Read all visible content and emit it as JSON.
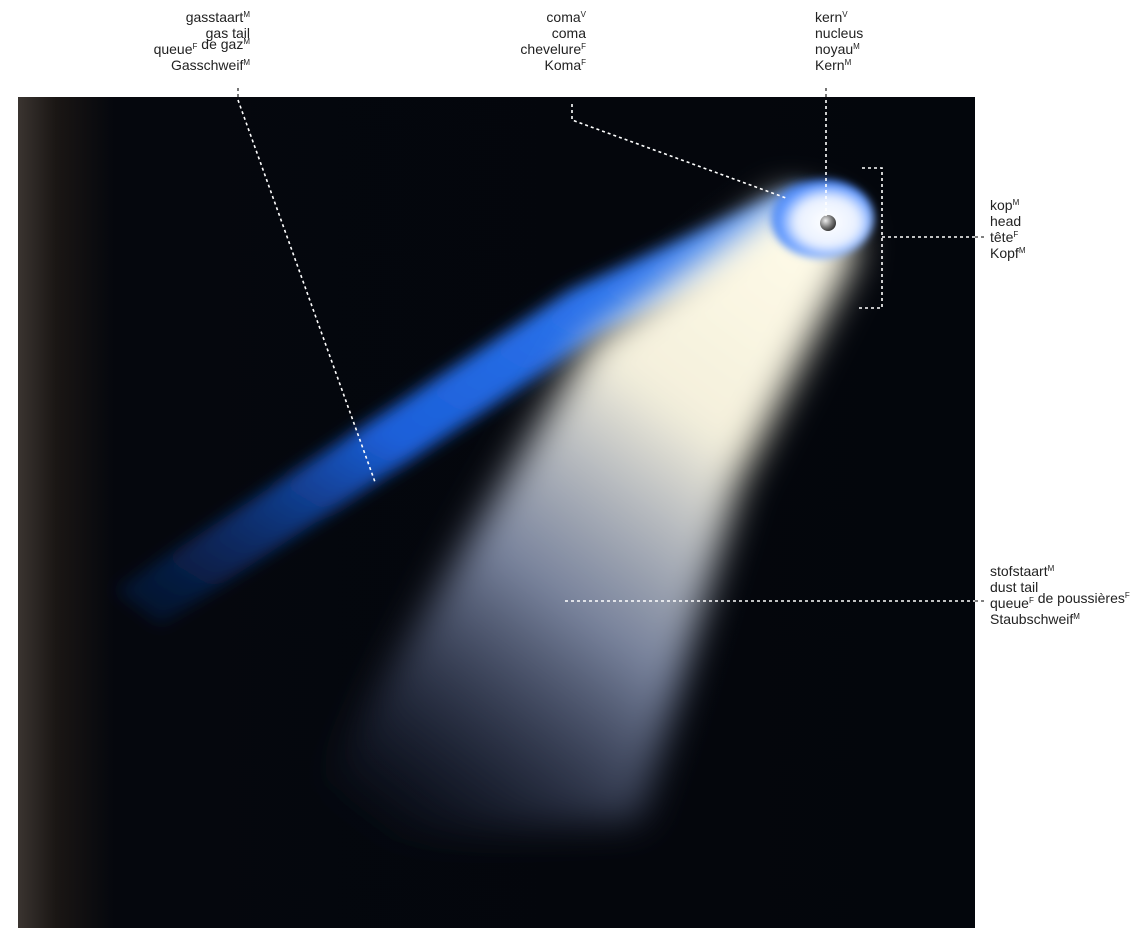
{
  "labels": [
    {
      "lines": [
        [
          {
            "text": "gasstaart"
          },
          {
            "sup": "M"
          }
        ],
        [
          {
            "text": "gas tail"
          }
        ],
        [
          {
            "text": "queue"
          },
          {
            "sup": "F"
          },
          {
            "text": " de gaz"
          },
          {
            "sup": "M"
          }
        ],
        [
          {
            "text": "Gasschweif"
          },
          {
            "sup": "M"
          }
        ]
      ]
    },
    {
      "lines": [
        [
          {
            "text": "coma"
          },
          {
            "sup": "V"
          }
        ],
        [
          {
            "text": "coma"
          }
        ],
        [
          {
            "text": "chevelure"
          },
          {
            "sup": "F"
          }
        ],
        [
          {
            "text": "Koma"
          },
          {
            "sup": "F"
          }
        ]
      ]
    },
    {
      "lines": [
        [
          {
            "text": "kern"
          },
          {
            "sup": "V"
          }
        ],
        [
          {
            "text": "nucleus"
          }
        ],
        [
          {
            "text": "noyau"
          },
          {
            "sup": "M"
          }
        ],
        [
          {
            "text": "Kern"
          },
          {
            "sup": "M"
          }
        ]
      ]
    },
    {
      "lines": [
        [
          {
            "text": "kop"
          },
          {
            "sup": "M"
          }
        ],
        [
          {
            "text": "head"
          }
        ],
        [
          {
            "text": "tête"
          },
          {
            "sup": "F"
          }
        ],
        [
          {
            "text": "Kopf"
          },
          {
            "sup": "M"
          }
        ]
      ]
    },
    {
      "lines": [
        [
          {
            "text": "stofstaart"
          },
          {
            "sup": "M"
          }
        ],
        [
          {
            "text": "dust tail"
          }
        ],
        [
          {
            "text": "queue"
          },
          {
            "sup": "F"
          },
          {
            "text": " de poussières"
          },
          {
            "sup": "F"
          }
        ],
        [
          {
            "text": "Staubschweif"
          },
          {
            "sup": "M"
          }
        ]
      ]
    }
  ]
}
